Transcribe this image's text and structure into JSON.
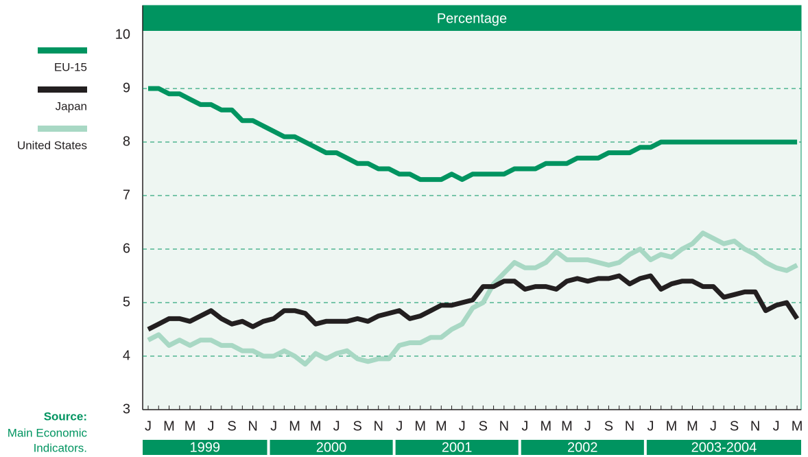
{
  "chart_data": {
    "type": "line",
    "title": "Percentage",
    "categories": [
      "J",
      null,
      "M",
      null,
      "M",
      null,
      "J",
      null,
      "S",
      null,
      "N",
      null,
      "J",
      null,
      "M",
      null,
      "M",
      null,
      "J",
      null,
      "S",
      null,
      "N",
      null,
      "J",
      null,
      "M",
      null,
      "M",
      null,
      "J",
      null,
      "S",
      null,
      "N",
      null,
      "J",
      null,
      "M",
      null,
      "M",
      null,
      "J",
      null,
      "S",
      null,
      "N",
      null,
      "J",
      null,
      "M",
      null,
      "M",
      null,
      "J",
      null,
      "S",
      null,
      "N",
      null,
      "J",
      null,
      "M"
    ],
    "years": [
      "1999",
      "2000",
      "2001",
      "2002",
      "2003-2004"
    ],
    "series": [
      {
        "name": "EU-15",
        "color": "#009460",
        "values": [
          9.0,
          9.0,
          8.9,
          8.9,
          8.8,
          8.7,
          8.7,
          8.6,
          8.6,
          8.4,
          8.4,
          8.3,
          8.2,
          8.1,
          8.1,
          8.0,
          7.9,
          7.8,
          7.8,
          7.7,
          7.6,
          7.6,
          7.5,
          7.5,
          7.4,
          7.4,
          7.3,
          7.3,
          7.3,
          7.4,
          7.3,
          7.4,
          7.4,
          7.4,
          7.4,
          7.5,
          7.5,
          7.5,
          7.6,
          7.6,
          7.6,
          7.7,
          7.7,
          7.7,
          7.8,
          7.8,
          7.8,
          7.9,
          7.9,
          8.0,
          8.0,
          8.0,
          8.0,
          8.0,
          8.0,
          8.0,
          8.0,
          8.0,
          8.0,
          8.0,
          8.0,
          8.0,
          8.0
        ]
      },
      {
        "name": "Japan",
        "color": "#231f20",
        "values": [
          4.5,
          4.6,
          4.7,
          4.7,
          4.65,
          4.75,
          4.85,
          4.7,
          4.6,
          4.65,
          4.55,
          4.65,
          4.7,
          4.85,
          4.85,
          4.8,
          4.6,
          4.65,
          4.65,
          4.65,
          4.7,
          4.65,
          4.75,
          4.8,
          4.85,
          4.7,
          4.75,
          4.85,
          4.95,
          4.95,
          5.0,
          5.05,
          5.3,
          5.3,
          5.4,
          5.4,
          5.25,
          5.3,
          5.3,
          5.25,
          5.4,
          5.45,
          5.4,
          5.45,
          5.45,
          5.5,
          5.35,
          5.45,
          5.5,
          5.25,
          5.35,
          5.4,
          5.4,
          5.3,
          5.3,
          5.1,
          5.15,
          5.2,
          5.2,
          4.85,
          4.95,
          5.0,
          4.7
        ]
      },
      {
        "name": "United States",
        "color": "#a8d8c4",
        "values": [
          4.3,
          4.4,
          4.2,
          4.3,
          4.2,
          4.3,
          4.3,
          4.2,
          4.2,
          4.1,
          4.1,
          4.0,
          4.0,
          4.1,
          4.0,
          3.85,
          4.05,
          3.95,
          4.05,
          4.1,
          3.95,
          3.9,
          3.95,
          3.95,
          4.2,
          4.25,
          4.25,
          4.35,
          4.35,
          4.5,
          4.6,
          4.9,
          5.0,
          5.35,
          5.55,
          5.75,
          5.65,
          5.65,
          5.75,
          5.95,
          5.8,
          5.8,
          5.8,
          5.75,
          5.7,
          5.75,
          5.9,
          6.0,
          5.8,
          5.9,
          5.85,
          6.0,
          6.1,
          6.3,
          6.2,
          6.1,
          6.15,
          6.0,
          5.9,
          5.75,
          5.65,
          5.6,
          5.7
        ]
      }
    ],
    "ylim": [
      3,
      10
    ],
    "yticks": [
      3,
      4,
      5,
      6,
      7,
      8,
      9,
      10
    ],
    "grid": true,
    "source_label": "Source:",
    "source_lines": [
      "Main Economic",
      "Indicators."
    ]
  }
}
